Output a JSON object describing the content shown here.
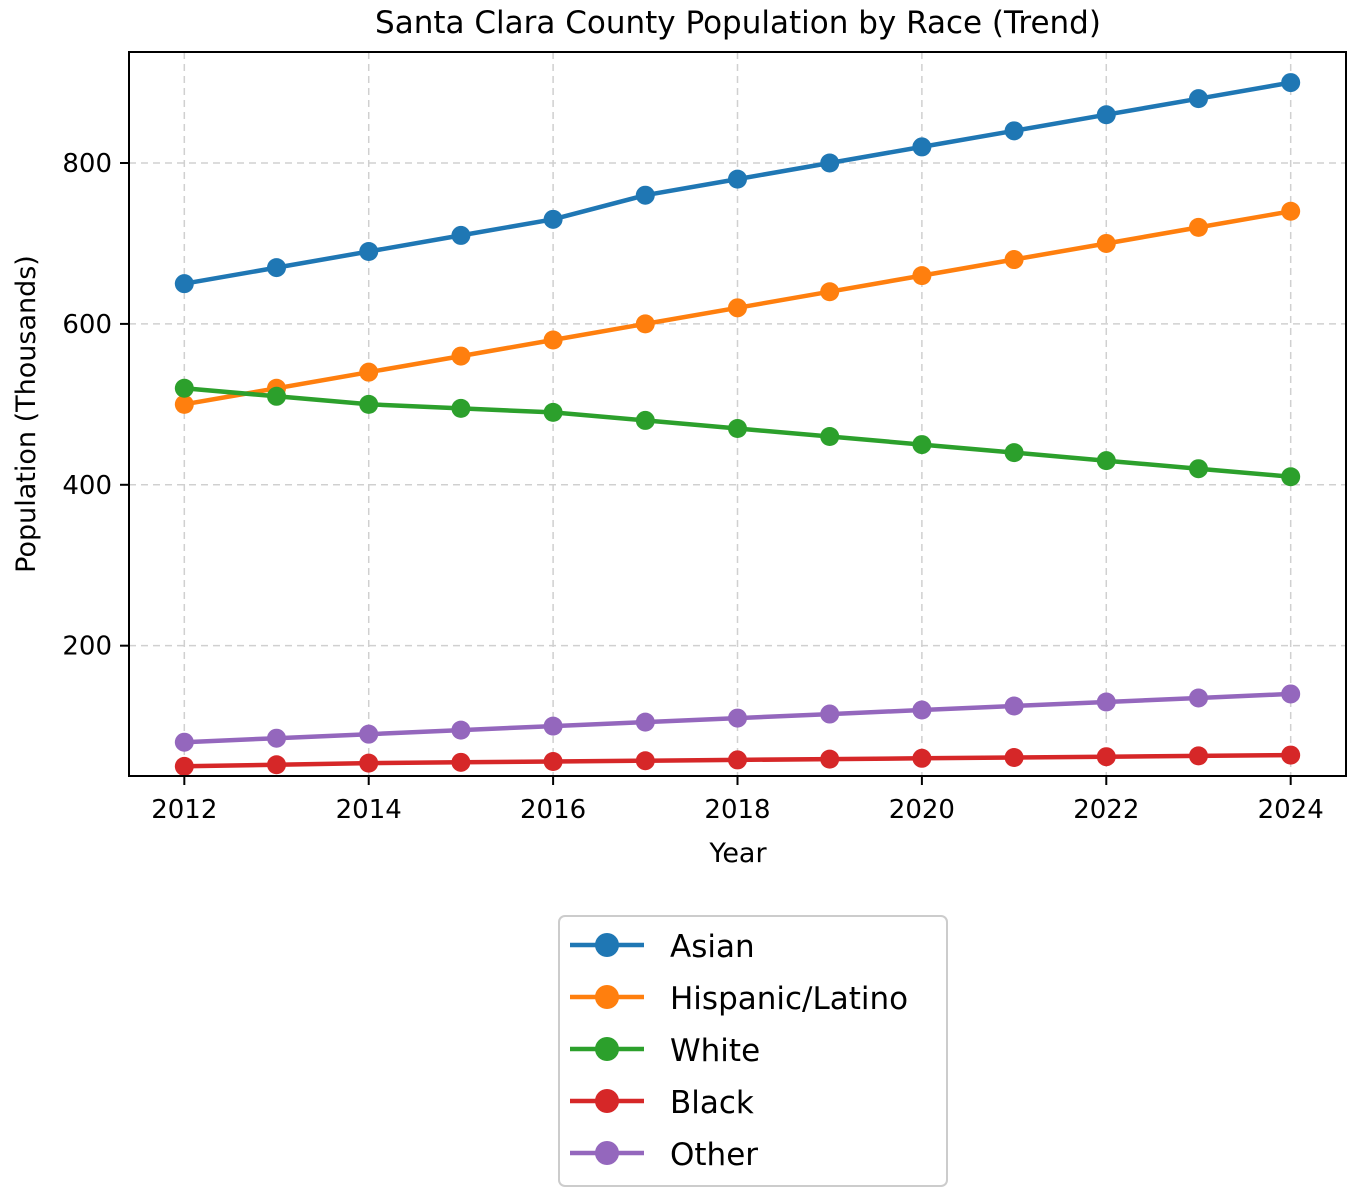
{
  "chart_data": {
    "type": "line",
    "title": "Santa Clara County Population by Race (Trend)",
    "xlabel": "Year",
    "ylabel": "Population (Thousands)",
    "x": [
      2012,
      2013,
      2014,
      2015,
      2016,
      2017,
      2018,
      2019,
      2020,
      2021,
      2022,
      2023,
      2024
    ],
    "xticks": [
      "2012",
      "2014",
      "2016",
      "2018",
      "2020",
      "2022",
      "2024"
    ],
    "yticks": [
      "200",
      "400",
      "600",
      "800"
    ],
    "xlim": [
      2011.4,
      2024.6
    ],
    "ylim": [
      38,
      938
    ],
    "grid": true,
    "legend_position": "below the plot",
    "series": [
      {
        "name": "Asian",
        "color": "#1f77b4",
        "values": [
          650,
          670,
          690,
          710,
          730,
          760,
          780,
          800,
          820,
          840,
          860,
          880,
          900
        ]
      },
      {
        "name": "Hispanic/Latino",
        "color": "#ff7f0e",
        "values": [
          500,
          520,
          540,
          560,
          580,
          600,
          620,
          640,
          660,
          680,
          700,
          720,
          740
        ]
      },
      {
        "name": "White",
        "color": "#2ca02c",
        "values": [
          520,
          510,
          500,
          495,
          490,
          480,
          470,
          460,
          450,
          440,
          430,
          420,
          410
        ]
      },
      {
        "name": "Black",
        "color": "#d62728",
        "values": [
          50,
          52,
          54,
          55,
          56,
          57,
          58,
          59,
          60,
          61,
          62,
          63,
          64
        ]
      },
      {
        "name": "Other",
        "color": "#9467bd",
        "values": [
          80,
          85,
          90,
          95,
          100,
          105,
          110,
          115,
          120,
          125,
          130,
          135,
          140
        ]
      }
    ]
  }
}
